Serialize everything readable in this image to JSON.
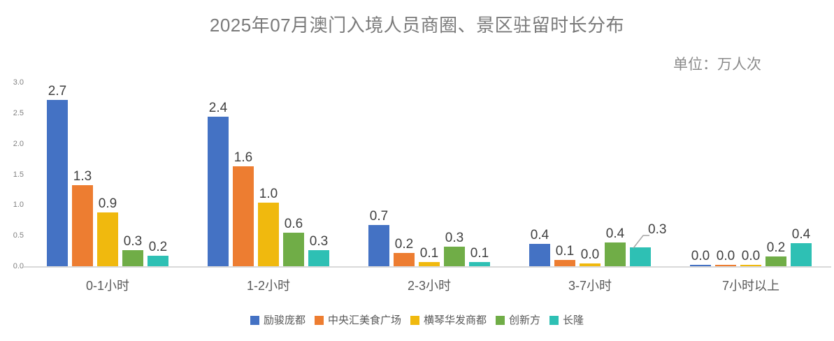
{
  "chart_data": {
    "type": "bar",
    "title": "2025年07月澳门入境人员商圈、景区驻留时长分布",
    "unit": "单位：万人次",
    "xlabel": "",
    "ylabel": "",
    "categories": [
      "0-1小时",
      "1-2小时",
      "2-3小时",
      "3-7小时",
      "7小时以上"
    ],
    "series": [
      {
        "name": "励骏庞都",
        "color": "#4472C4",
        "values": [
          2.7,
          2.4,
          0.7,
          0.4,
          0.0
        ],
        "bar_heights": [
          2.72,
          2.44,
          0.67,
          0.36,
          0.02
        ]
      },
      {
        "name": "中央汇美食广场",
        "color": "#ED7D31",
        "values": [
          1.3,
          1.6,
          0.2,
          0.1,
          0.0
        ],
        "bar_heights": [
          1.32,
          1.63,
          0.22,
          0.1,
          0.02
        ]
      },
      {
        "name": "横琴华发商都",
        "color": "#F0B90E",
        "values": [
          0.9,
          1.0,
          0.1,
          0.0,
          0.0
        ],
        "bar_heights": [
          0.88,
          1.04,
          0.07,
          0.04,
          0.02
        ]
      },
      {
        "name": "创新方",
        "color": "#70AD47",
        "values": [
          0.3,
          0.6,
          0.3,
          0.4,
          0.2
        ],
        "bar_heights": [
          0.26,
          0.55,
          0.32,
          0.39,
          0.16
        ]
      },
      {
        "name": "长隆",
        "color": "#2EC0B4",
        "values": [
          0.2,
          0.3,
          0.1,
          0.3,
          0.4
        ],
        "bar_heights": [
          0.17,
          0.26,
          0.07,
          0.31,
          0.38
        ]
      }
    ],
    "ylim": [
      0,
      3
    ],
    "yticks": [
      "0.0",
      "0.5",
      "1.0",
      "1.5",
      "2.0",
      "2.5",
      "3.0"
    ],
    "grid": false,
    "legend_position": "bottom",
    "callout": {
      "series": 4,
      "category": 3
    },
    "colors": {
      "axis_line": "#d9d9d9",
      "data_label": "#404040",
      "axis_label": "#595959",
      "title": "#7a7a7a",
      "leader_line": "#a6a6a6"
    }
  }
}
